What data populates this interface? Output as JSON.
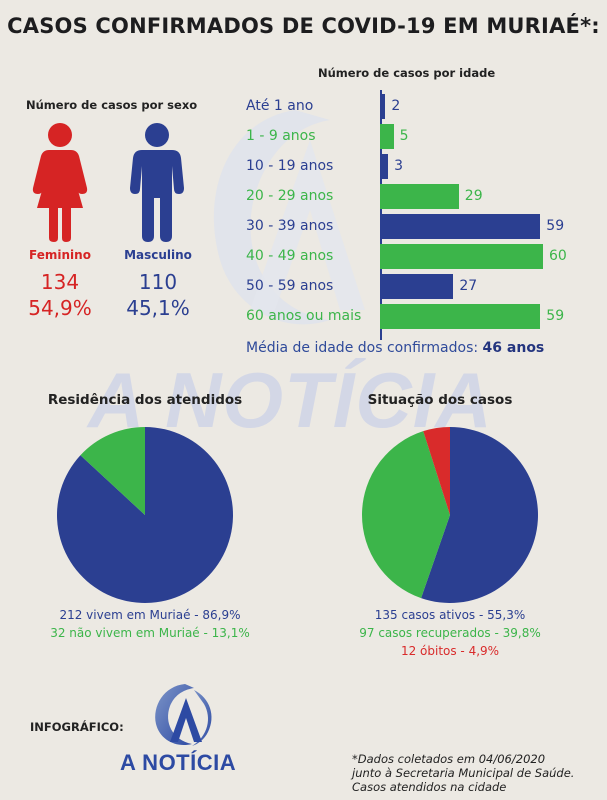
{
  "title": "CASOS CONFIRMADOS DE COVID-19 EM MURIAÉ*:",
  "watermark": "A NOTÍCIA",
  "colors": {
    "blue": "#2b3f91",
    "green": "#3cb54a",
    "red": "#d92b2b",
    "female": "#d62424",
    "male": "#2b3f91"
  },
  "sex": {
    "subtitle": "Número de casos por sexo",
    "female": {
      "label": "Feminino",
      "count": "134",
      "pct": "54,9%"
    },
    "male": {
      "label": "Masculino",
      "count": "110",
      "pct": "45,1%"
    }
  },
  "age": {
    "subtitle": "Número de casos por idade",
    "mean_label": "Média de idade dos confirmados:",
    "mean_value": "46 anos"
  },
  "residence": {
    "title": "Residência dos atendidos",
    "legend": [
      "212 vivem em Muriaé - 86,9%",
      "32 não vivem em Muriaé - 13,1%"
    ]
  },
  "status": {
    "title": "Situação dos casos",
    "legend": [
      "135 casos ativos - 55,3%",
      "97 casos recuperados - 39,8%",
      "12 óbitos - 4,9%"
    ]
  },
  "credit": "INFOGRÁFICO:",
  "brand": "A NOTÍCIA",
  "footnote": [
    "*Dados coletados em 04/06/2020",
    "junto à Secretaria Municipal de Saúde.",
    "Casos atendidos na cidade"
  ],
  "chart_data": [
    {
      "type": "bar",
      "orientation": "horizontal",
      "title": "Número de casos por idade",
      "categories": [
        "Até 1 ano",
        "1 - 9 anos",
        "10 - 19 anos",
        "20 - 29 anos",
        "30 - 39 anos",
        "40 - 49 anos",
        "50 - 59 anos",
        "60 anos ou mais"
      ],
      "values": [
        2,
        5,
        3,
        29,
        59,
        60,
        27,
        59
      ],
      "labels": [
        "2",
        "5",
        "3",
        "29",
        "59",
        "60",
        "27",
        "59"
      ],
      "colors": [
        "#2b3f91",
        "#3cb54a",
        "#2b3f91",
        "#3cb54a",
        "#2b3f91",
        "#3cb54a",
        "#2b3f91",
        "#3cb54a"
      ],
      "xlim": [
        0,
        60
      ]
    },
    {
      "type": "pie",
      "title": "Residência dos atendidos",
      "values": [
        212,
        32
      ],
      "percentages": [
        86.9,
        13.1
      ],
      "colors": [
        "#2b3f91",
        "#3cb54a"
      ]
    },
    {
      "type": "pie",
      "title": "Situação dos casos",
      "values": [
        135,
        97,
        12
      ],
      "percentages": [
        55.3,
        39.8,
        4.9
      ],
      "colors": [
        "#2b3f91",
        "#3cb54a",
        "#d92b2b"
      ]
    }
  ]
}
